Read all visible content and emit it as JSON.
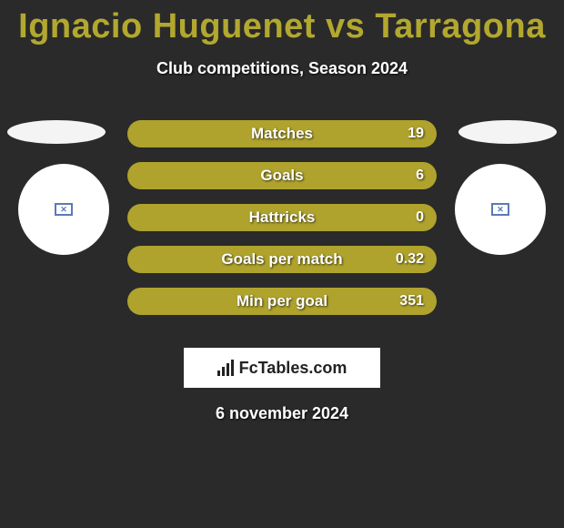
{
  "colors": {
    "background": "#2a2a2a",
    "title": "#b3a82f",
    "subtitle": "#ffffff",
    "bar_fill": "#afa32d",
    "bar_text": "#ffffff",
    "bar_value": "#ffffff",
    "ellipse": "#f4f4f4",
    "circle_bg": "#ffffff",
    "placeholder_border": "#5a7ab8",
    "placeholder_x": "#5a7ab8",
    "badge_bg": "#ffffff",
    "badge_text": "#222222",
    "badge_icon": "#222222",
    "date_text": "#ffffff"
  },
  "title": "Ignacio Huguenet vs Tarragona",
  "subtitle": "Club competitions, Season 2024",
  "stats": [
    {
      "label": "Matches",
      "value": "19"
    },
    {
      "label": "Goals",
      "value": "6"
    },
    {
      "label": "Hattricks",
      "value": "0"
    },
    {
      "label": "Goals per match",
      "value": "0.32"
    },
    {
      "label": "Min per goal",
      "value": "351"
    }
  ],
  "badge": {
    "text": "FcTables.com"
  },
  "date": "6 november 2024"
}
